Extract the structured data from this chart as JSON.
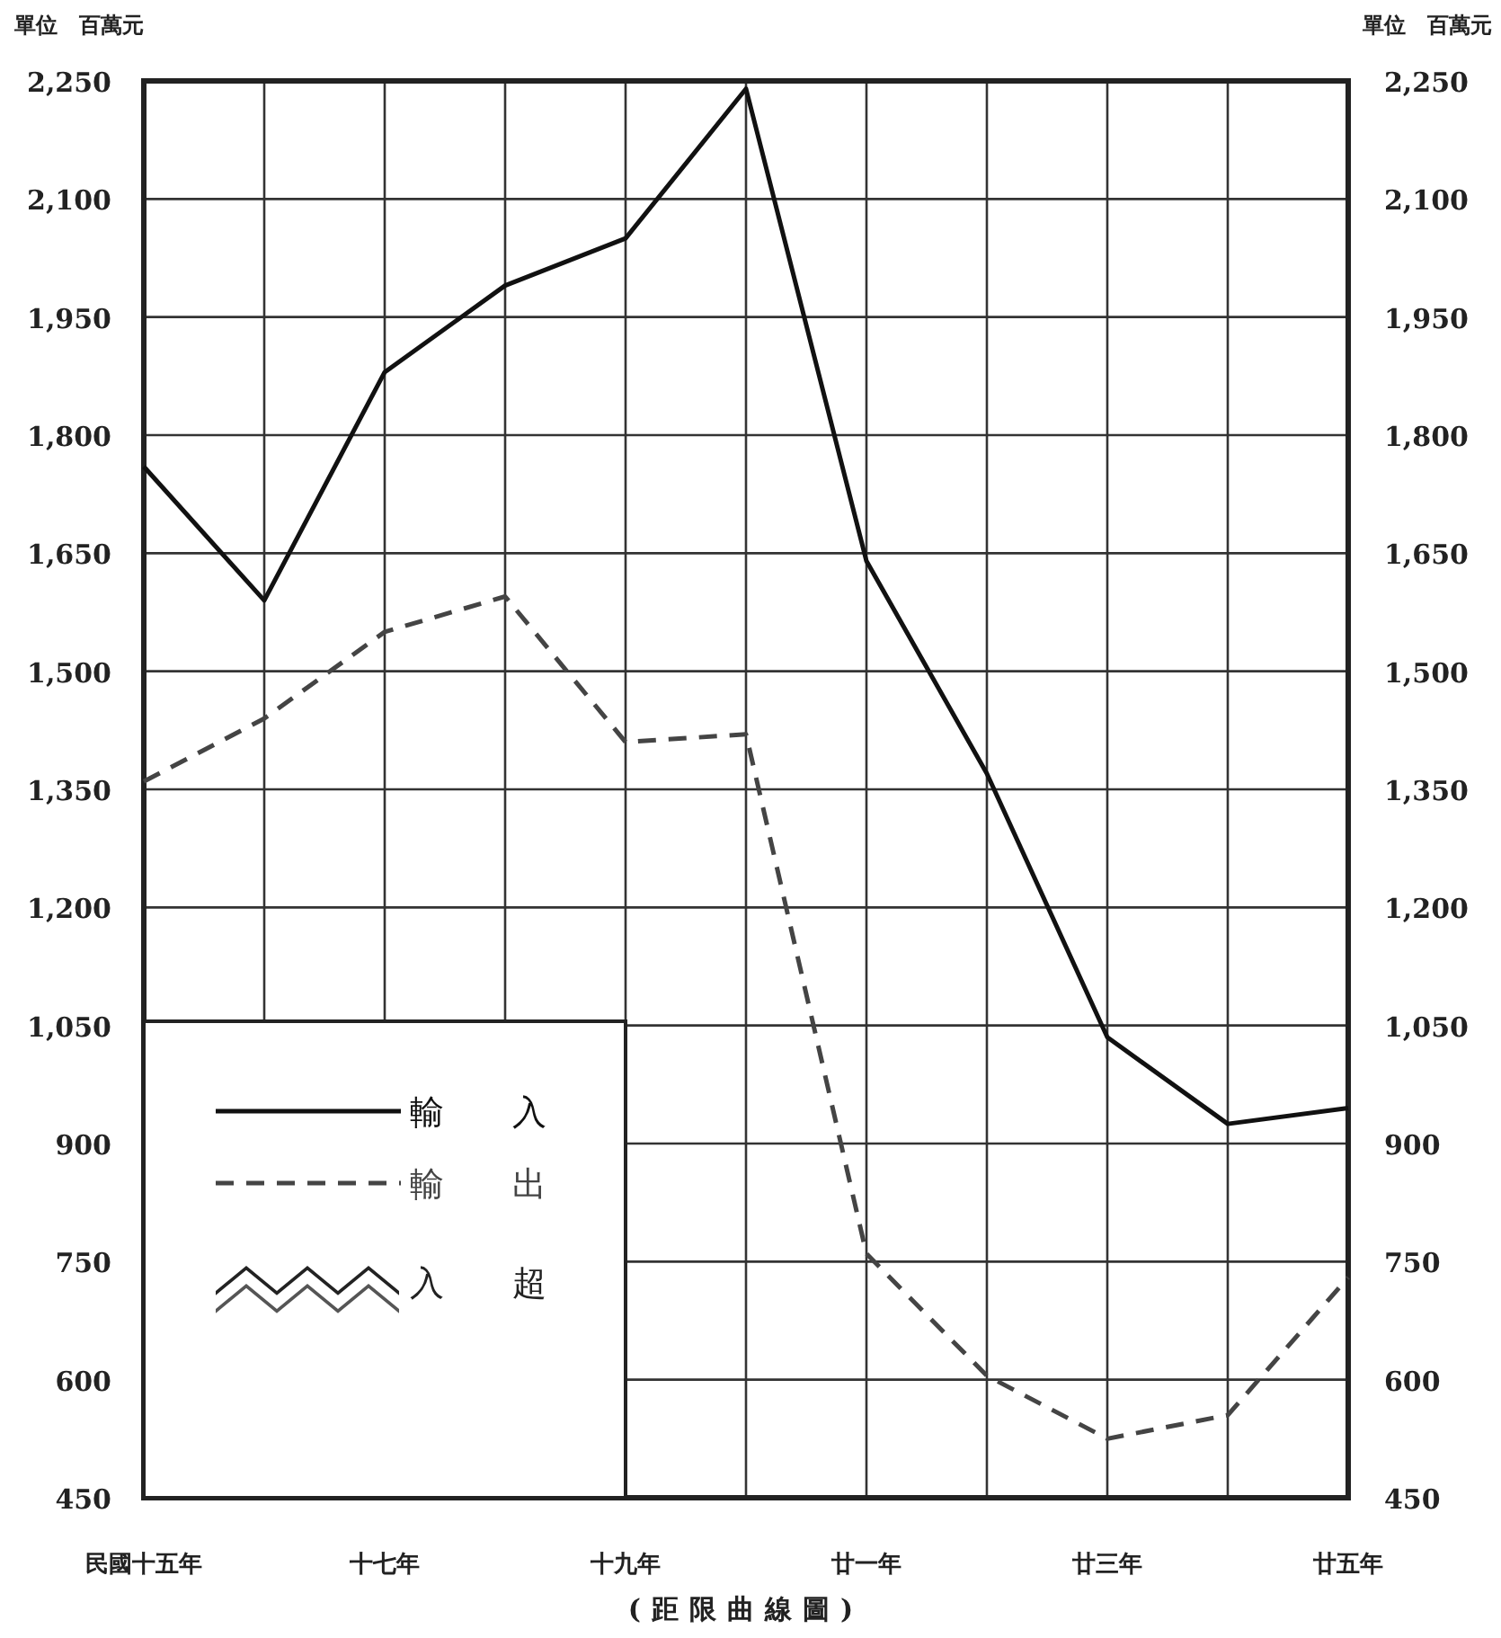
{
  "chart_data": {
    "type": "line",
    "ylabel": "單位　百萬元",
    "y2label": "單位　百萬元",
    "categories": [
      "民國十五年",
      null,
      "十七年",
      null,
      "十九年",
      null,
      "廿一年",
      null,
      "廿三年",
      null,
      "廿五年"
    ],
    "series": [
      {
        "name": "輸入",
        "color": "#111111",
        "line_style": "solid",
        "values": [
          1760,
          1590,
          1880,
          1990,
          2050,
          2240,
          1640,
          1370,
          1035,
          925,
          945
        ]
      },
      {
        "name": "輸出",
        "color": "#444444",
        "line_style": "dashed",
        "values": [
          1360,
          1440,
          1550,
          1595,
          1410,
          1420,
          760,
          605,
          525,
          555,
          730
        ]
      }
    ],
    "ylim": [
      450,
      2250
    ],
    "yticks": [
      450,
      600,
      750,
      900,
      {
        "value": 1050,
        "label": "1,050"
      },
      {
        "value": 1200,
        "label": "1,200"
      },
      {
        "value": 1350,
        "label": "1,350"
      },
      {
        "value": 1500,
        "label": "1,500"
      },
      {
        "value": 1650,
        "label": "1,650"
      },
      {
        "value": 1800,
        "label": "1,800"
      },
      {
        "value": 1950,
        "label": "1,950"
      },
      {
        "value": 2100,
        "label": "2,100"
      },
      {
        "value": 2250,
        "label": "2,250"
      }
    ],
    "y2lim": [
      450,
      2250
    ],
    "y2ticks": [
      450,
      600,
      750,
      900,
      {
        "value": 1050,
        "label": "1,050"
      },
      {
        "value": 1200,
        "label": "1,200"
      },
      {
        "value": 1350,
        "label": "1,350"
      },
      {
        "value": 1500,
        "label": "1,500"
      },
      {
        "value": 1650,
        "label": "1,650"
      },
      {
        "value": 1800,
        "label": "1,800"
      },
      {
        "value": 1950,
        "label": "1,950"
      },
      {
        "value": 2100,
        "label": "2,100"
      },
      {
        "value": 2250,
        "label": "2,250"
      }
    ],
    "grid": true,
    "legend": "bottom left",
    "annotations": [
      "入超",
      "(距限曲線圖)"
    ]
  }
}
